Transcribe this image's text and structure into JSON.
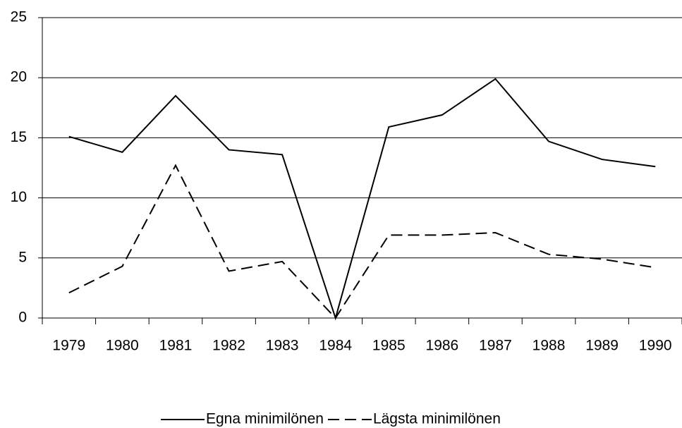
{
  "chart_data": {
    "type": "line",
    "categories": [
      "1979",
      "1980",
      "1981",
      "1982",
      "1983",
      "1984",
      "1985",
      "1986",
      "1987",
      "1988",
      "1989",
      "1990"
    ],
    "series": [
      {
        "name": "Egna minimilönen",
        "color": "#000000",
        "dash": "solid",
        "values": [
          15.1,
          13.8,
          18.5,
          14.0,
          13.6,
          0,
          15.9,
          16.9,
          19.9,
          14.7,
          13.2,
          12.6
        ]
      },
      {
        "name": "Lägsta minimilönen",
        "color": "#000000",
        "dash": "dashed",
        "values": [
          2.1,
          4.3,
          12.7,
          3.9,
          4.7,
          0,
          6.9,
          6.9,
          7.1,
          5.3,
          4.9,
          4.2
        ]
      }
    ],
    "ylim": [
      0,
      25
    ],
    "yticks": [
      0,
      5,
      10,
      15,
      20,
      25
    ],
    "grid": true,
    "legend": "bottom"
  }
}
